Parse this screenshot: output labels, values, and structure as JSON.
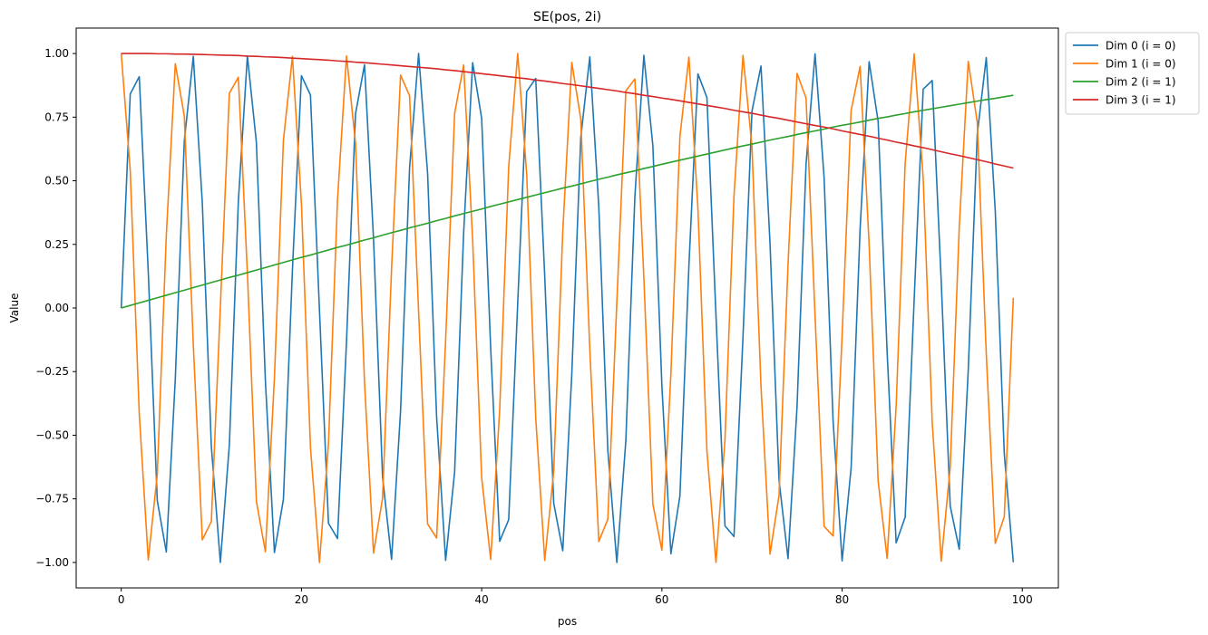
{
  "chart_data": {
    "type": "line",
    "title": "SE(pos, 2i)",
    "xlabel": "pos",
    "ylabel": "Value",
    "xlim": [
      -5,
      104
    ],
    "ylim": [
      -1.1,
      1.1
    ],
    "x_ticks": [
      0,
      20,
      40,
      60,
      80,
      100
    ],
    "x_tick_labels": [
      "0",
      "20",
      "40",
      "60",
      "80",
      "100"
    ],
    "y_ticks": [
      -1.0,
      -0.75,
      -0.5,
      -0.25,
      0.0,
      0.25,
      0.5,
      0.75,
      1.0
    ],
    "y_tick_labels": [
      "−1.00",
      "−0.75",
      "−0.50",
      "−0.25",
      "0.00",
      "0.25",
      "0.50",
      "0.75",
      "1.00"
    ],
    "grid": false,
    "legend_position": "outside top-right",
    "x": [
      0,
      1,
      2,
      3,
      4,
      5,
      6,
      7,
      8,
      9,
      10,
      11,
      12,
      13,
      14,
      15,
      16,
      17,
      18,
      19,
      20,
      21,
      22,
      23,
      24,
      25,
      26,
      27,
      28,
      29,
      30,
      31,
      32,
      33,
      34,
      35,
      36,
      37,
      38,
      39,
      40,
      41,
      42,
      43,
      44,
      45,
      46,
      47,
      48,
      49,
      50,
      51,
      52,
      53,
      54,
      55,
      56,
      57,
      58,
      59,
      60,
      61,
      62,
      63,
      64,
      65,
      66,
      67,
      68,
      69,
      70,
      71,
      72,
      73,
      74,
      75,
      76,
      77,
      78,
      79,
      80,
      81,
      82,
      83,
      84,
      85,
      86,
      87,
      88,
      89,
      90,
      91,
      92,
      93,
      94,
      95,
      96,
      97,
      98,
      99
    ],
    "series": [
      {
        "name": "Dim 0 (i = 0)",
        "color": "#1f77b4",
        "values": [
          0,
          0.841,
          0.909,
          0.141,
          -0.757,
          -0.959,
          -0.279,
          0.657,
          0.989,
          0.412,
          -0.544,
          -1,
          -0.537,
          0.42,
          0.991,
          0.65,
          -0.288,
          -0.961,
          -0.751,
          0.15,
          0.913,
          0.837,
          -0.009,
          -0.846,
          -0.906,
          -0.132,
          0.763,
          0.956,
          0.271,
          -0.664,
          -0.988,
          -0.404,
          0.551,
          1,
          0.529,
          -0.428,
          -0.992,
          -0.644,
          0.296,
          0.964,
          0.745,
          -0.159,
          -0.917,
          -0.832,
          0.018,
          0.851,
          0.902,
          0.124,
          -0.768,
          -0.954,
          -0.262,
          0.67,
          0.987,
          0.396,
          -0.559,
          -1,
          -0.522,
          0.436,
          0.993,
          0.637,
          -0.305,
          -0.966,
          -0.739,
          0.167,
          0.92,
          0.827,
          -0.027,
          -0.856,
          -0.898,
          -0.115,
          0.774,
          0.951,
          0.254,
          -0.677,
          -0.985,
          -0.388,
          0.566,
          0.999,
          0.514,
          -0.444,
          -0.994,
          -0.629,
          0.313,
          0.968,
          0.733,
          -0.176,
          -0.923,
          -0.822,
          0.035,
          0.86,
          0.894,
          0.106,
          -0.779,
          -0.948,
          -0.245,
          0.683,
          0.984,
          0.38,
          -0.574,
          -0.999
        ]
      },
      {
        "name": "Dim 1 (i = 0)",
        "color": "#ff7f0e",
        "values": [
          1,
          0.54,
          -0.416,
          -0.99,
          -0.654,
          0.284,
          0.96,
          0.754,
          -0.146,
          -0.911,
          -0.839,
          0.004,
          0.844,
          0.907,
          0.137,
          -0.76,
          -0.958,
          -0.275,
          0.66,
          0.989,
          0.408,
          -0.548,
          -1,
          -0.533,
          0.424,
          0.991,
          0.647,
          -0.292,
          -0.963,
          -0.748,
          0.154,
          0.915,
          0.834,
          -0.013,
          -0.849,
          -0.904,
          -0.128,
          0.765,
          0.955,
          0.267,
          -0.667,
          -0.988,
          -0.4,
          0.555,
          1,
          0.525,
          -0.432,
          -0.992,
          -0.64,
          0.3,
          0.965,
          0.742,
          -0.163,
          -0.918,
          -0.83,
          0.022,
          0.853,
          0.9,
          0.119,
          -0.771,
          -0.952,
          -0.258,
          0.673,
          0.986,
          0.392,
          -0.562,
          -1,
          -0.518,
          0.44,
          0.993,
          0.633,
          -0.309,
          -0.967,
          -0.736,
          0.172,
          0.922,
          0.825,
          -0.031,
          -0.858,
          -0.896,
          -0.11,
          0.776,
          0.949,
          0.249,
          -0.68,
          -0.984,
          -0.384,
          0.57,
          0.999,
          0.51,
          -0.448,
          -0.995,
          -0.626,
          0.317,
          0.969,
          0.73,
          -0.181,
          -0.925,
          -0.82,
          0.04
        ]
      },
      {
        "name": "Dim 2 (i = 1)",
        "color": "#2ca02c",
        "values": [
          0,
          0.01,
          0.02,
          0.03,
          0.04,
          0.05,
          0.06,
          0.07,
          0.08,
          0.09,
          0.1,
          0.11,
          0.12,
          0.129,
          0.139,
          0.149,
          0.159,
          0.169,
          0.179,
          0.189,
          0.199,
          0.208,
          0.218,
          0.228,
          0.238,
          0.247,
          0.257,
          0.267,
          0.276,
          0.286,
          0.296,
          0.305,
          0.315,
          0.324,
          0.333,
          0.343,
          0.352,
          0.362,
          0.371,
          0.38,
          0.389,
          0.399,
          0.408,
          0.417,
          0.426,
          0.435,
          0.444,
          0.453,
          0.462,
          0.471,
          0.479,
          0.488,
          0.497,
          0.506,
          0.514,
          0.523,
          0.531,
          0.539,
          0.548,
          0.556,
          0.565,
          0.573,
          0.581,
          0.589,
          0.597,
          0.605,
          0.613,
          0.621,
          0.629,
          0.637,
          0.644,
          0.652,
          0.66,
          0.667,
          0.674,
          0.682,
          0.689,
          0.696,
          0.703,
          0.711,
          0.718,
          0.724,
          0.731,
          0.738,
          0.745,
          0.751,
          0.758,
          0.764,
          0.771,
          0.777,
          0.783,
          0.789,
          0.795,
          0.801,
          0.807,
          0.813,
          0.819,
          0.824,
          0.83,
          0.836
        ]
      },
      {
        "name": "Dim 3 (i = 1)",
        "color": "#d62728",
        "values": [
          1,
          1,
          1,
          1,
          0.999,
          0.999,
          0.998,
          0.998,
          0.997,
          0.996,
          0.995,
          0.994,
          0.993,
          0.992,
          0.99,
          0.989,
          0.987,
          0.986,
          0.984,
          0.982,
          0.98,
          0.978,
          0.976,
          0.974,
          0.971,
          0.969,
          0.966,
          0.964,
          0.961,
          0.958,
          0.955,
          0.952,
          0.949,
          0.946,
          0.943,
          0.94,
          0.936,
          0.933,
          0.929,
          0.925,
          0.921,
          0.917,
          0.913,
          0.909,
          0.905,
          0.901,
          0.896,
          0.892,
          0.887,
          0.882,
          0.878,
          0.873,
          0.868,
          0.863,
          0.858,
          0.853,
          0.847,
          0.842,
          0.836,
          0.831,
          0.825,
          0.82,
          0.814,
          0.808,
          0.802,
          0.796,
          0.79,
          0.784,
          0.777,
          0.771,
          0.765,
          0.758,
          0.751,
          0.745,
          0.738,
          0.731,
          0.724,
          0.717,
          0.711,
          0.704,
          0.696,
          0.689,
          0.682,
          0.675,
          0.667,
          0.66,
          0.652,
          0.645,
          0.637,
          0.63,
          0.622,
          0.614,
          0.606,
          0.599,
          0.591,
          0.583,
          0.575,
          0.566,
          0.558,
          0.55
        ]
      }
    ]
  }
}
